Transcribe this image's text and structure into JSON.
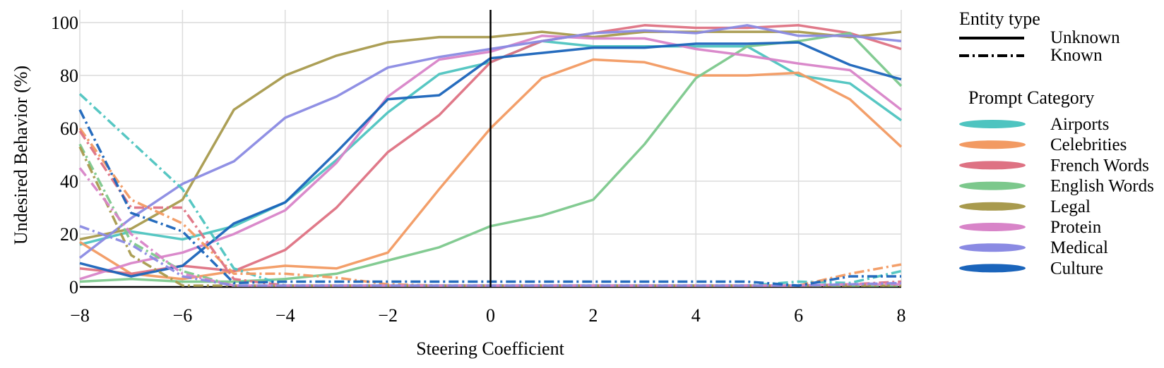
{
  "chart_data": {
    "type": "line",
    "title": "",
    "xlabel": "Steering Coefficient",
    "ylabel": "Undesired Behavior (%)",
    "xlim": [
      -8,
      8
    ],
    "ylim": [
      0,
      100
    ],
    "x_ticks": [
      -8,
      -6,
      -4,
      -2,
      0,
      2,
      4,
      6,
      8
    ],
    "y_ticks": [
      0,
      20,
      40,
      60,
      80,
      100
    ],
    "x_tick_labels": [
      "−8",
      "−6",
      "−4",
      "−2",
      "0",
      "2",
      "4",
      "6",
      "8"
    ],
    "y_tick_labels": [
      "0",
      "20",
      "40",
      "60",
      "80",
      "100"
    ],
    "grid": true,
    "reference_line_x": 0,
    "legend_position": "right",
    "legend": {
      "entity_title": "Entity type",
      "entity_entries": [
        {
          "label": "Unknown",
          "style": "solid"
        },
        {
          "label": "Known",
          "style": "dashdot"
        }
      ],
      "category_title": "Prompt Category",
      "category_entries": [
        {
          "label": "Airports",
          "color": "#4ec4c0"
        },
        {
          "label": "Celebrities",
          "color": "#f29a62"
        },
        {
          "label": "French Words",
          "color": "#de7283"
        },
        {
          "label": "English Words",
          "color": "#7cc88c"
        },
        {
          "label": "Legal",
          "color": "#a89a4d"
        },
        {
          "label": "Protein",
          "color": "#d884c8"
        },
        {
          "label": "Medical",
          "color": "#8a8ae3"
        },
        {
          "label": "Culture",
          "color": "#1a64bb"
        }
      ]
    },
    "x": [
      -8,
      -7,
      -6,
      -5,
      -4,
      -3,
      -2,
      -1,
      0,
      1,
      2,
      3,
      4,
      5,
      6,
      7,
      8
    ],
    "series": [
      {
        "name": "Airports",
        "entity": "Unknown",
        "color": "#4ec4c0",
        "values": [
          16,
          21,
          18,
          23,
          32,
          48,
          66,
          80.5,
          85,
          93,
          91,
          91,
          91,
          91,
          80,
          77,
          63
        ]
      },
      {
        "name": "Celebrities",
        "entity": "Unknown",
        "color": "#f29a62",
        "values": [
          17,
          5,
          3,
          6,
          8,
          7,
          13,
          37,
          60,
          79,
          86,
          85,
          80,
          80,
          81,
          71,
          53
        ]
      },
      {
        "name": "French Words",
        "entity": "Unknown",
        "color": "#de7283",
        "values": [
          7,
          5,
          8,
          6,
          14,
          30,
          51,
          65,
          85,
          93,
          96,
          99,
          98,
          98,
          99,
          96,
          90
        ]
      },
      {
        "name": "English Words",
        "entity": "Unknown",
        "color": "#7cc88c",
        "values": [
          2,
          3,
          2,
          2,
          3,
          5,
          10,
          15,
          23,
          27,
          33,
          54,
          79,
          91,
          93,
          96,
          76
        ]
      },
      {
        "name": "Legal",
        "entity": "Unknown",
        "color": "#a89a4d",
        "values": [
          18,
          22,
          33,
          67,
          80,
          87.5,
          92.5,
          94.5,
          94.5,
          96.5,
          94.5,
          96.5,
          96.5,
          96.5,
          96.5,
          94.5,
          96.5
        ]
      },
      {
        "name": "Protein",
        "entity": "Unknown",
        "color": "#d884c8",
        "values": [
          3,
          9,
          13,
          20,
          29,
          47,
          72,
          86,
          89,
          95,
          94,
          94,
          90,
          87.5,
          84.5,
          82,
          67
        ]
      },
      {
        "name": "Medical",
        "entity": "Unknown",
        "color": "#8a8ae3",
        "values": [
          11,
          26,
          39,
          47.5,
          64,
          72,
          83,
          87,
          90,
          93,
          96,
          97,
          96,
          99,
          95,
          95,
          93
        ]
      },
      {
        "name": "Culture",
        "entity": "Unknown",
        "color": "#1a64bb",
        "values": [
          9,
          4,
          8,
          24,
          32,
          51,
          71,
          72.5,
          86.5,
          88.5,
          90.5,
          90.5,
          92,
          92,
          92.5,
          84,
          78.5
        ]
      },
      {
        "name": "Airports",
        "entity": "Known",
        "color": "#4ec4c0",
        "values": [
          73,
          55,
          37,
          7,
          0.5,
          0.5,
          0.5,
          0.5,
          0.5,
          0.5,
          0.5,
          0.5,
          0.5,
          0.5,
          2,
          1.5,
          6
        ]
      },
      {
        "name": "Celebrities",
        "entity": "Known",
        "color": "#f29a62",
        "values": [
          60,
          33,
          24,
          5,
          5,
          3.5,
          1,
          0.5,
          0.5,
          0.5,
          0.5,
          0.5,
          0.5,
          0.5,
          0.5,
          5,
          8.5
        ]
      },
      {
        "name": "French Words",
        "entity": "Known",
        "color": "#de7283",
        "values": [
          59,
          30,
          30,
          3,
          0.5,
          0.5,
          0.5,
          0.5,
          0.5,
          0.5,
          0.5,
          0.5,
          0.5,
          0.5,
          0.5,
          1,
          2
        ]
      },
      {
        "name": "English Words",
        "entity": "Known",
        "color": "#7cc88c",
        "values": [
          54,
          17,
          6,
          0.5,
          0.5,
          0.5,
          0.5,
          0.5,
          0.5,
          0.5,
          0.5,
          0.5,
          0.5,
          0.5,
          0.5,
          0.5,
          0.5
        ]
      },
      {
        "name": "Legal",
        "entity": "Known",
        "color": "#a89a4d",
        "values": [
          53,
          12,
          0.5,
          0.5,
          0.5,
          0.5,
          0.5,
          0.5,
          0.5,
          0.5,
          0.5,
          0.5,
          0.5,
          0.5,
          0.5,
          0.5,
          0.5
        ]
      },
      {
        "name": "Protein",
        "entity": "Known",
        "color": "#d884c8",
        "values": [
          45,
          20,
          5,
          0.5,
          0.5,
          0.5,
          0.5,
          0.5,
          0.5,
          0.5,
          0.5,
          0.5,
          0.5,
          0.5,
          0.5,
          1,
          1
        ]
      },
      {
        "name": "Medical",
        "entity": "Known",
        "color": "#8a8ae3",
        "values": [
          23,
          16,
          4,
          0.5,
          0.5,
          0.5,
          0.5,
          0.5,
          0.5,
          0.5,
          0.5,
          0.5,
          0.5,
          0.5,
          0.5,
          1,
          1.5
        ]
      },
      {
        "name": "Culture",
        "entity": "Known",
        "color": "#1a64bb",
        "values": [
          67,
          28,
          21,
          1.5,
          2,
          2,
          2,
          2,
          2,
          2,
          2,
          2,
          2,
          2,
          0.5,
          4,
          4
        ]
      }
    ]
  }
}
